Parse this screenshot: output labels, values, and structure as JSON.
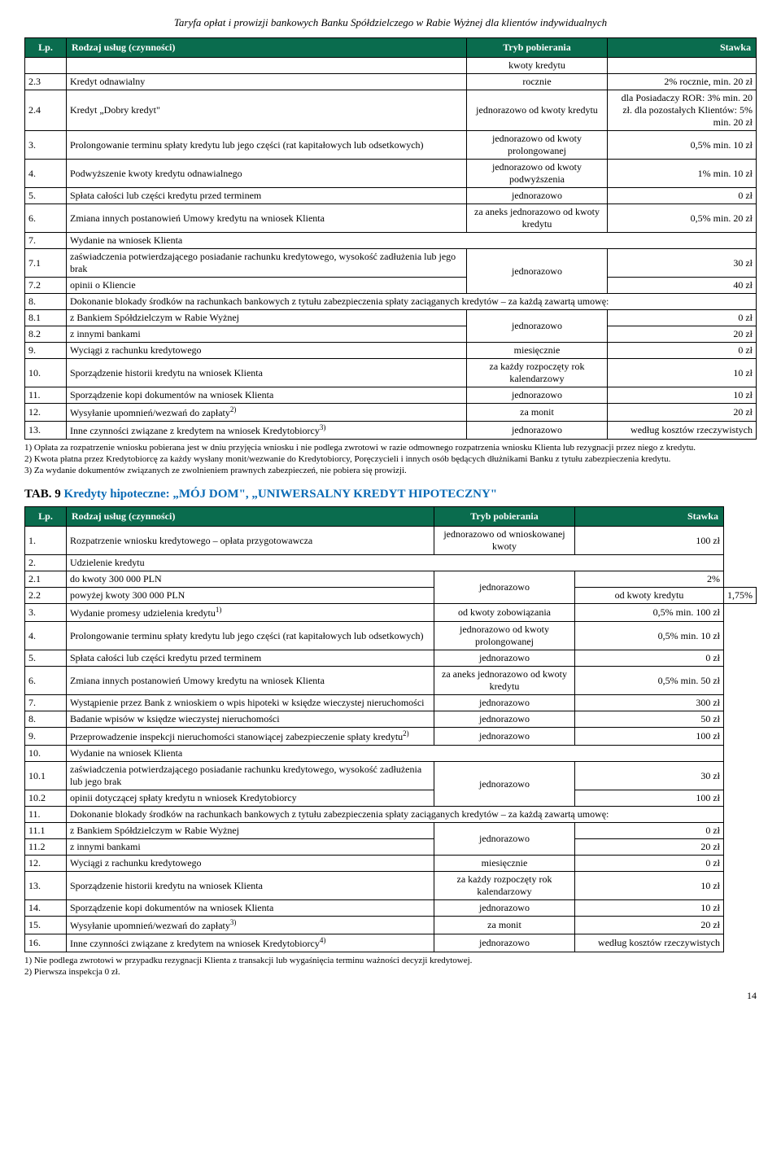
{
  "header": "Taryfa opłat i prowizji bankowych Banku Spółdzielczego w Rabie Wyżnej dla klientów indywidualnych",
  "pageNumber": "14",
  "table1": {
    "headers": {
      "lp": "Lp.",
      "desc": "Rodzaj usług (czynności)",
      "tryb": "Tryb pobierania",
      "stawka": "Stawka"
    },
    "rows": [
      {
        "lp": "",
        "desc": "",
        "tryb": "kwoty kredytu",
        "stawka": ""
      },
      {
        "lp": "2.3",
        "desc": "Kredyt odnawialny",
        "tryb": "rocznie",
        "stawka": "2% rocznie, min. 20 zł"
      },
      {
        "lp": "2.4",
        "desc": "Kredyt „Dobry kredyt\"",
        "tryb": "jednorazowo od kwoty kredytu",
        "stawka": "dla Posiadaczy ROR: 3% min. 20 zł. dla pozostałych Klientów: 5% min. 20 zł"
      },
      {
        "lp": "3.",
        "desc": "Prolongowanie terminu spłaty kredytu lub jego części (rat kapitałowych lub odsetkowych)",
        "tryb": "jednorazowo od kwoty prolongowanej",
        "stawka": "0,5% min. 10 zł"
      },
      {
        "lp": "4.",
        "desc": "Podwyższenie kwoty kredytu odnawialnego",
        "tryb": "jednorazowo od kwoty podwyższenia",
        "stawka": "1% min. 10 zł"
      },
      {
        "lp": "5.",
        "desc": "Spłata całości lub części kredytu przed terminem",
        "tryb": "jednorazowo",
        "stawka": "0 zł"
      },
      {
        "lp": "6.",
        "desc": "Zmiana innych postanowień Umowy kredytu na wniosek Klienta",
        "tryb": "za aneks jednorazowo od kwoty kredytu",
        "stawka": "0,5% min. 20 zł"
      },
      {
        "lp": "7.",
        "desc": "Wydanie na wniosek Klienta",
        "colspan": 3
      },
      {
        "lp": "7.1",
        "desc": "zaświadczenia potwierdzającego posiadanie rachunku kredytowego, wysokość zadłużenia lub jego brak",
        "tryb": "jednorazowo",
        "stawka": "30 zł",
        "trybRowspan": 2
      },
      {
        "lp": "7.2",
        "desc": "opinii o Kliencie",
        "stawka": "40 zł",
        "skipTryb": true
      },
      {
        "lp": "8.",
        "desc": "Dokonanie blokady środków na rachunkach bankowych z tytułu zabezpieczenia spłaty zaciąganych kredytów – za każdą zawartą umowę:",
        "colspan": 3
      },
      {
        "lp": "8.1",
        "desc": "z Bankiem Spółdzielczym w Rabie Wyżnej",
        "tryb": "jednorazowo",
        "stawka": "0 zł",
        "trybRowspan": 2
      },
      {
        "lp": "8.2",
        "desc": "z innymi bankami",
        "stawka": "20 zł",
        "skipTryb": true
      },
      {
        "lp": "9.",
        "desc": "Wyciągi z rachunku kredytowego",
        "tryb": "miesięcznie",
        "stawka": "0 zł"
      },
      {
        "lp": "10.",
        "desc": "Sporządzenie historii kredytu na wniosek Klienta",
        "tryb": "za każdy rozpoczęty rok kalendarzowy",
        "stawka": "10 zł"
      },
      {
        "lp": "11.",
        "desc": "Sporządzenie kopi dokumentów na wniosek Klienta",
        "tryb": "jednorazowo",
        "stawka": "10 zł"
      },
      {
        "lp": "12.",
        "desc": "Wysyłanie upomnień/wezwań do zapłaty",
        "sup": "2)",
        "tryb": "za monit",
        "stawka": "20 zł"
      },
      {
        "lp": "13.",
        "desc": "Inne czynności związane z kredytem na wniosek Kredytobiorcy",
        "sup": "3)",
        "tryb": "jednorazowo",
        "stawka": "według kosztów rzeczywistych"
      }
    ],
    "footnotes": [
      "1)  Opłata za rozpatrzenie wniosku pobierana jest w dniu przyjęcia wniosku i nie podlega zwrotowi w razie odmownego rozpatrzenia wniosku Klienta lub rezygnacji przez niego z kredytu.",
      "2)  Kwota płatna przez Kredytobiorcę za każdy wysłany monit/wezwanie do Kredytobiorcy, Poręczycieli i innych osób będących dłużnikami Banku z tytułu zabezpieczenia kredytu.",
      "3)  Za wydanie dokumentów związanych ze zwolnieniem prawnych zabezpieczeń, nie pobiera się prowizji."
    ]
  },
  "section2Title": {
    "prefix": "TAB. 9 ",
    "blue": "Kredyty hipoteczne: „MÓJ DOM\", „UNIWERSALNY KREDYT HIPOTECZNY\""
  },
  "table2": {
    "headers": {
      "lp": "Lp.",
      "desc": "Rodzaj usług (czynności)",
      "tryb": "Tryb pobierania",
      "stawka": "Stawka"
    },
    "rows": [
      {
        "lp": "1.",
        "desc": "Rozpatrzenie wniosku kredytowego – opłata przygotowawcza",
        "tryb": "jednorazowo od wnioskowanej kwoty",
        "stawka": "100 zł"
      },
      {
        "lp": "2.",
        "desc": "Udzielenie kredytu",
        "colspan": 3
      },
      {
        "lp": "2.1",
        "desc": "do kwoty 300 000 PLN",
        "tryb": "jednorazowo",
        "stawka": "2%",
        "trybRowspan": 2
      },
      {
        "lp": "2.2",
        "desc": "powyżej kwoty 300 000 PLN",
        "tryb": "od kwoty kredytu",
        "stawka": "1,75%"
      },
      {
        "lp": "3.",
        "desc": "Wydanie promesy udzielenia kredytu",
        "sup": "1)",
        "tryb": "od kwoty zobowiązania",
        "stawka": "0,5% min. 100 zł"
      },
      {
        "lp": "4.",
        "desc": "Prolongowanie terminu spłaty kredytu lub jego części (rat kapitałowych lub odsetkowych)",
        "tryb": "jednorazowo od kwoty prolongowanej",
        "stawka": "0,5% min. 10 zł"
      },
      {
        "lp": "5.",
        "desc": "Spłata całości lub części kredytu przed terminem",
        "tryb": "jednorazowo",
        "stawka": "0 zł"
      },
      {
        "lp": "6.",
        "desc": "Zmiana innych postanowień Umowy kredytu na wniosek Klienta",
        "tryb": "za aneks jednorazowo od kwoty kredytu",
        "stawka": "0,5% min. 50 zł"
      },
      {
        "lp": "7.",
        "desc": "Wystąpienie przez Bank z wnioskiem o wpis hipoteki w księdze wieczystej nieruchomości",
        "tryb": "jednorazowo",
        "stawka": "300 zł"
      },
      {
        "lp": "8.",
        "desc": "Badanie wpisów w księdze wieczystej nieruchomości",
        "tryb": "jednorazowo",
        "stawka": "50 zł"
      },
      {
        "lp": "9.",
        "desc": "Przeprowadzenie inspekcji nieruchomości stanowiącej zabezpieczenie spłaty kredytu",
        "sup": "2)",
        "tryb": "jednorazowo",
        "stawka": "100 zł"
      },
      {
        "lp": "10.",
        "desc": "Wydanie na wniosek Klienta",
        "colspan": 3
      },
      {
        "lp": "10.1",
        "desc": "zaświadczenia potwierdzającego posiadanie rachunku kredytowego, wysokość zadłużenia lub jego brak",
        "tryb": "jednorazowo",
        "stawka": "30 zł",
        "trybRowspan": 2
      },
      {
        "lp": "10.2",
        "desc": "opinii dotyczącej spłaty kredytu n wniosek Kredytobiorcy",
        "stawka": "100 zł",
        "skipTryb": true
      },
      {
        "lp": "11.",
        "desc": "Dokonanie blokady środków na rachunkach bankowych z tytułu zabezpieczenia spłaty zaciąganych kredytów – za każdą zawartą umowę:",
        "colspan": 3
      },
      {
        "lp": "11.1",
        "desc": "z Bankiem Spółdzielczym w Rabie Wyżnej",
        "tryb": "jednorazowo",
        "stawka": "0 zł",
        "trybRowspan": 2
      },
      {
        "lp": "11.2",
        "desc": "z innymi bankami",
        "stawka": "20 zł",
        "skipTryb": true
      },
      {
        "lp": "12.",
        "desc": "Wyciągi z rachunku kredytowego",
        "tryb": "miesięcznie",
        "stawka": "0 zł"
      },
      {
        "lp": "13.",
        "desc": "Sporządzenie historii kredytu na wniosek Klienta",
        "tryb": "za każdy rozpoczęty rok kalendarzowy",
        "stawka": "10 zł"
      },
      {
        "lp": "14.",
        "desc": "Sporządzenie kopi dokumentów na wniosek Klienta",
        "tryb": "jednorazowo",
        "stawka": "10 zł"
      },
      {
        "lp": "15.",
        "desc": "Wysyłanie upomnień/wezwań do zapłaty",
        "sup": "3)",
        "tryb": "za monit",
        "stawka": "20 zł"
      },
      {
        "lp": "16.",
        "desc": "Inne czynności związane z kredytem na wniosek Kredytobiorcy",
        "sup": "4)",
        "tryb": "jednorazowo",
        "stawka": "według kosztów rzeczywistych"
      }
    ],
    "footnotes": [
      "1)  Nie podlega zwrotowi w przypadku rezygnacji Klienta z transakcji lub wygaśnięcia terminu ważności decyzji kredytowej.",
      "2)  Pierwsza inspekcja 0 zł."
    ]
  }
}
